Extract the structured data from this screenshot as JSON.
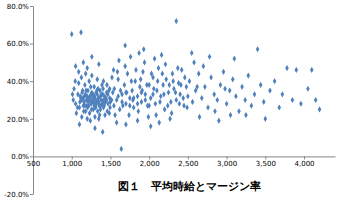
{
  "chart_data": {
    "type": "scatter",
    "title": "図１　平均時給とマージン率",
    "x": [
      1020,
      1050,
      1080,
      1100,
      1120,
      1140,
      1160,
      1180,
      1200,
      1220,
      1240,
      1260,
      1280,
      1300,
      1320,
      1340,
      1360,
      1380,
      1400,
      1420,
      1440,
      1460,
      1480,
      1500,
      1030,
      1060,
      1090,
      1110,
      1130,
      1150,
      1170,
      1190,
      1210,
      1230,
      1250,
      1270,
      1290,
      1310,
      1330,
      1350,
      1370,
      1390,
      1410,
      1430,
      1450,
      1470,
      1490,
      1010,
      1045,
      1075,
      1105,
      1135,
      1165,
      1195,
      1225,
      1255,
      1285,
      1315,
      1345,
      1375,
      1405,
      1435,
      1465,
      1495,
      1125,
      1155,
      1185,
      1215,
      1245,
      1275,
      1305,
      1335,
      1365,
      1395,
      1425,
      1455,
      1485,
      1515,
      1530,
      1545,
      1200,
      1240,
      1300,
      1350,
      1180,
      1260,
      1330,
      1410,
      1520,
      1090,
      1130,
      1170,
      1210,
      1250,
      1290,
      1330,
      1370,
      1410,
      1450,
      1490,
      1145,
      1175,
      1205,
      1235,
      1265,
      1295,
      1325,
      1355,
      1385,
      1415,
      1000,
      1120,
      1050,
      1150,
      1260,
      1200,
      1350,
      1100,
      1300,
      1400,
      1550,
      1580,
      1600,
      1620,
      1650,
      1680,
      1700,
      1720,
      1750,
      1780,
      1800,
      1820,
      1850,
      1880,
      1900,
      1920,
      1950,
      1980,
      2000,
      2020,
      2050,
      2080,
      2100,
      2120,
      2150,
      2180,
      2200,
      2220,
      2250,
      2280,
      2300,
      2320,
      2350,
      2380,
      2400,
      2420,
      2450,
      2480,
      2500,
      1560,
      1590,
      1630,
      1660,
      1690,
      1710,
      1740,
      1770,
      1790,
      1830,
      1860,
      1890,
      1910,
      1940,
      1970,
      1990,
      2030,
      2060,
      2090,
      2110,
      2140,
      2170,
      2190,
      2210,
      2240,
      2260,
      2290,
      2310,
      2340,
      2370,
      2390,
      2410,
      2440,
      2460,
      2490,
      1610,
      1760,
      1870,
      1930,
      2070,
      2160,
      1580,
      1700,
      1640,
      1850,
      2020,
      2130,
      2270,
      2350,
      1690,
      1540,
      1600,
      1650,
      1700,
      1750,
      1800,
      1850,
      1900,
      1950,
      2000,
      2050,
      2520,
      2560,
      2600,
      2640,
      2680,
      2720,
      2760,
      2800,
      2840,
      2880,
      2920,
      2960,
      3000,
      3040,
      3080,
      3120,
      3160,
      3200,
      3240,
      3280,
      3320,
      3360,
      3400,
      3440,
      3480,
      3500,
      3560,
      3620,
      3680,
      3720,
      3780,
      3850,
      3900,
      3960,
      4050,
      4100,
      4150,
      4200,
      2580,
      2700,
      2650,
      2900,
      3100,
      3050,
      2780,
      2550,
      2850,
      3250,
      2980,
      2620
    ],
    "values": [
      30,
      28,
      33,
      26,
      31,
      35,
      29,
      24,
      32,
      27,
      30,
      34,
      25,
      31,
      28,
      36,
      22,
      30,
      33,
      27,
      31,
      24,
      35,
      29,
      36,
      23,
      39,
      32,
      21,
      27,
      38,
      30,
      35,
      23,
      28,
      31,
      37,
      26,
      33,
      29,
      25,
      38,
      30,
      22,
      34,
      28,
      31,
      33,
      40,
      26,
      29,
      34,
      32,
      27,
      40,
      25,
      29,
      34,
      31,
      27,
      36,
      29,
      33,
      26,
      42,
      24,
      35,
      29,
      37,
      33,
      29,
      24,
      35,
      28,
      32,
      38,
      23,
      30,
      34,
      27,
      20,
      19,
      21,
      20,
      44,
      43,
      41,
      40,
      42,
      45,
      30,
      27,
      31,
      33,
      27,
      30,
      32,
      26,
      30,
      36,
      31,
      33,
      26,
      32,
      29,
      32,
      35,
      27,
      33,
      29,
      65,
      66,
      48,
      50,
      53,
      47,
      49,
      17,
      15,
      13,
      36,
      30,
      41,
      25,
      33,
      38,
      28,
      44,
      31,
      35,
      26,
      40,
      32,
      37,
      29,
      45,
      33,
      27,
      38,
      31,
      42,
      28,
      35,
      47,
      32,
      38,
      25,
      41,
      34,
      29,
      44,
      36,
      30,
      39,
      33,
      46,
      27,
      37,
      32,
      22,
      45,
      35,
      27,
      48,
      34,
      22,
      40,
      30,
      46,
      24,
      41,
      35,
      50,
      38,
      21,
      44,
      36,
      22,
      40,
      29,
      44,
      33,
      49,
      27,
      38,
      23,
      40,
      34,
      47,
      28,
      38,
      31,
      42,
      26,
      51,
      53,
      55,
      57,
      52,
      54,
      18,
      17,
      4,
      19,
      16,
      18,
      20,
      72,
      59,
      46,
      32,
      29,
      34,
      27,
      31,
      28,
      34,
      30,
      27,
      33,
      40,
      29,
      35,
      44,
      31,
      37,
      26,
      42,
      33,
      30,
      38,
      45,
      28,
      35,
      41,
      32,
      24,
      37,
      30,
      43,
      27,
      33,
      57,
      38,
      29,
      20,
      35,
      40,
      26,
      33,
      47,
      30,
      46,
      28,
      36,
      46,
      30,
      25,
      50,
      48,
      21,
      19,
      52,
      22,
      53,
      55,
      24,
      22,
      36,
      37
    ],
    "color": "#4f81bd",
    "marker": "diamond",
    "grid": false,
    "xlim": [
      500,
      4400
    ],
    "xticks": [
      500,
      {
        "value": 1000,
        "label": "1,000"
      },
      {
        "value": 1500,
        "label": "1,500"
      },
      {
        "value": 2000,
        "label": "2,000"
      },
      {
        "value": 2500,
        "label": "2,500"
      },
      {
        "value": 3000,
        "label": "3,000"
      },
      {
        "value": 3500,
        "label": "3,500"
      },
      {
        "value": 4000,
        "label": "4,000"
      }
    ],
    "ylim": [
      -20,
      80
    ],
    "yticks": [
      {
        "value": -20,
        "label": "-20.0%"
      },
      {
        "value": 0,
        "label": "0.0%"
      },
      {
        "value": 20,
        "label": "20.0%"
      },
      {
        "value": 40,
        "label": "40.0%"
      },
      {
        "value": 60,
        "label": "60.0%"
      },
      {
        "value": 80,
        "label": "80.0%"
      }
    ]
  }
}
